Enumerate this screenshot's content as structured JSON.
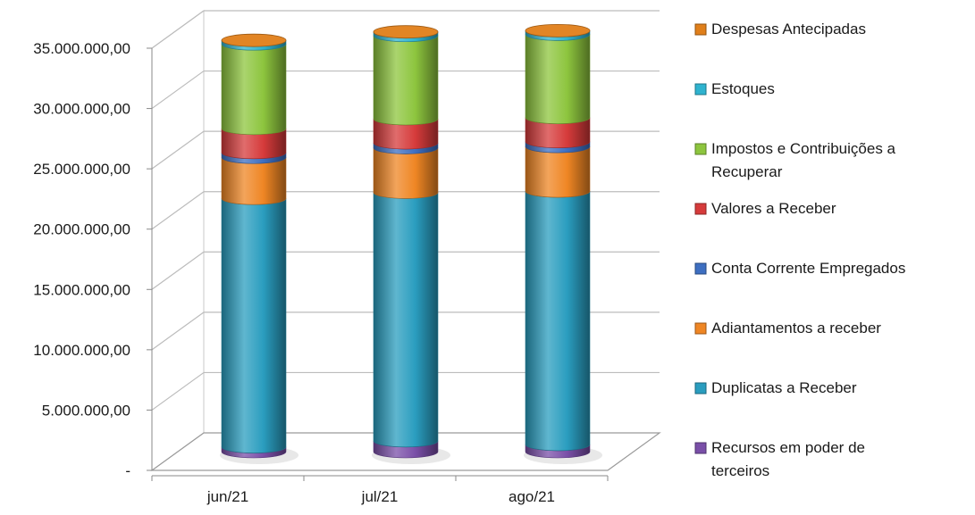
{
  "chart_data": {
    "type": "bar",
    "subtype": "stacked-3d-cylinder",
    "title": "",
    "xlabel": "",
    "ylabel": "",
    "categories": [
      "jun/21",
      "jul/21",
      "ago/21"
    ],
    "ylim": [
      0,
      35000000
    ],
    "yticks": [
      0,
      5000000,
      10000000,
      15000000,
      20000000,
      25000000,
      30000000,
      35000000
    ],
    "ytick_labels": [
      "-",
      "5.000.000,00",
      "10.000.000,00",
      "15.000.000,00",
      "20.000.000,00",
      "25.000.000,00",
      "30.000.000,00",
      "35.000.000,00"
    ],
    "grid": true,
    "legend_position": "right",
    "series": [
      {
        "name": "Recursos em poder de terceiros",
        "color": "#7A4FA8",
        "values": [
          400000,
          900000,
          600000
        ]
      },
      {
        "name": "Duplicatas a Receber",
        "color": "#2A9DBF",
        "values": [
          20600000,
          20600000,
          21000000
        ]
      },
      {
        "name": "Adiantamentos a receber",
        "color": "#EF8624",
        "values": [
          3400000,
          3700000,
          3700000
        ]
      },
      {
        "name": "Conta Corrente Empregados",
        "color": "#3E6FC1",
        "values": [
          400000,
          400000,
          400000
        ]
      },
      {
        "name": "Valores a Receber",
        "color": "#D63B3B",
        "values": [
          2000000,
          2000000,
          2000000
        ]
      },
      {
        "name": "Impostos e Contribuições a Recuperar",
        "color": "#8DC53E",
        "values": [
          7000000,
          6900000,
          6900000
        ]
      },
      {
        "name": "Estoques",
        "color": "#2FB3CF",
        "values": [
          300000,
          300000,
          300000
        ]
      },
      {
        "name": "Despesas Antecipadas",
        "color": "#E07F1A",
        "values": [
          0,
          0,
          0
        ]
      }
    ]
  }
}
